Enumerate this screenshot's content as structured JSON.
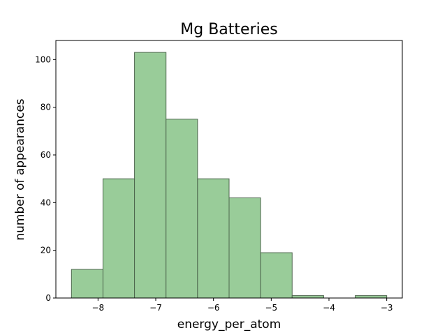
{
  "chart_data": {
    "type": "bar",
    "subtype": "histogram",
    "title": "Mg Batteries",
    "xlabel": "energy_per_atom",
    "ylabel": "number of appearances",
    "bin_edges": [
      -8.46,
      -7.914,
      -7.368,
      -6.822,
      -6.276,
      -5.73,
      -5.184,
      -4.638,
      -4.092,
      -3.546,
      -3.0
    ],
    "values": [
      12,
      50,
      103,
      75,
      50,
      42,
      19,
      1,
      0,
      1
    ],
    "xlim": [
      -8.73,
      -2.73
    ],
    "ylim": [
      0,
      108
    ],
    "xticks": [
      -8,
      -7,
      -6,
      -5,
      -4,
      -3
    ],
    "xtick_labels": [
      "−8",
      "−7",
      "−6",
      "−5",
      "−4",
      "−3"
    ],
    "yticks": [
      0,
      20,
      40,
      60,
      80,
      100
    ],
    "ytick_labels": [
      "0",
      "20",
      "40",
      "60",
      "80",
      "100"
    ],
    "bar_color": "#99cc99",
    "bar_edge_color": "#4d664d",
    "grid": false
  }
}
